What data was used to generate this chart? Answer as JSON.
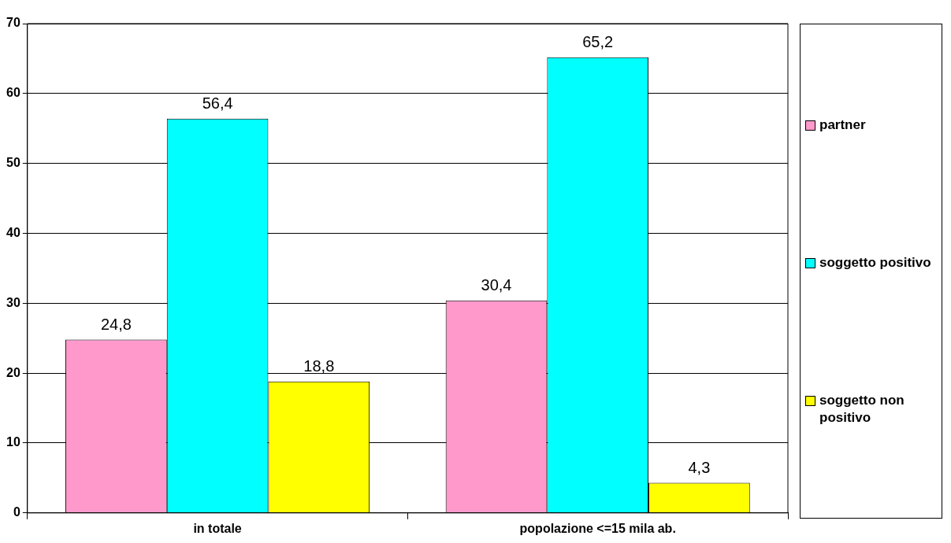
{
  "chart_data": {
    "type": "bar",
    "categories": [
      "in totale",
      "popolazione <=15 mila ab."
    ],
    "series": [
      {
        "name": "partner",
        "color": "#ff99cc",
        "values": [
          24.8,
          30.4
        ],
        "value_labels": [
          "24,8",
          "30,4"
        ]
      },
      {
        "name": "soggetto positivo",
        "color": "#00ffff",
        "values": [
          56.4,
          65.2
        ],
        "value_labels": [
          "56,4",
          "65,2"
        ]
      },
      {
        "name": "soggetto non positivo",
        "color": "#ffff00",
        "values": [
          18.8,
          4.3
        ],
        "value_labels": [
          "18,8",
          "4,3"
        ]
      }
    ],
    "ylim": [
      0,
      70
    ],
    "yticks": [
      0,
      10,
      20,
      30,
      40,
      50,
      60,
      70
    ],
    "grid": "y",
    "legend": "right"
  }
}
